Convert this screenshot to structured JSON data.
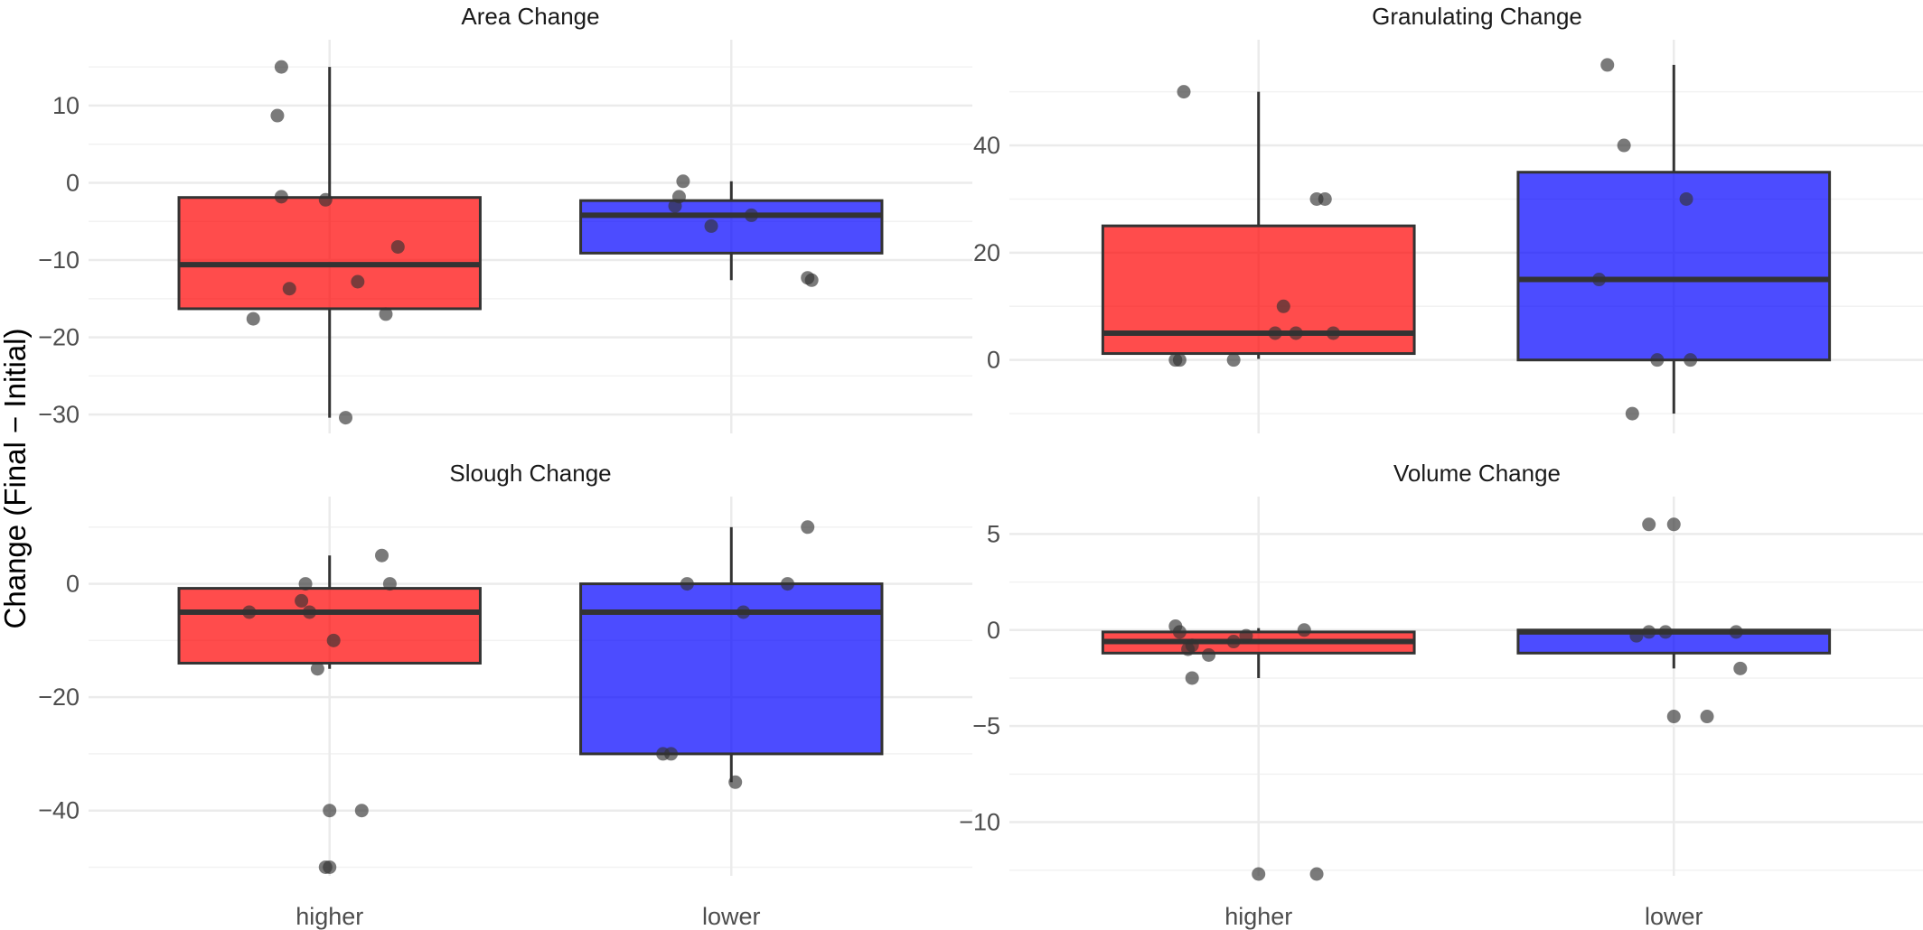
{
  "chart_data": {
    "type": "box",
    "ylabel": "Change (Final − Initial)",
    "colors": {
      "higher": "#FF0000",
      "lower": "#0000FF",
      "points": "#333333",
      "grid": "#ebebeb"
    },
    "panels": [
      {
        "title": "Area Change",
        "categories": [
          "higher",
          "lower"
        ],
        "ylim": [
          -31.5,
          16.3
        ],
        "yticks": [
          -30,
          -20,
          -10,
          0,
          10
        ],
        "ytick_labels": [
          "−30",
          "−20",
          "−10",
          "0",
          "10"
        ],
        "boxes": [
          {
            "category": "higher",
            "whisker_low": -30.4,
            "q1": -16.3,
            "median": -10.6,
            "q3": -1.9,
            "whisker_high": 15.0
          },
          {
            "category": "lower",
            "whisker_low": -12.6,
            "q1": -9.1,
            "median": -4.2,
            "q3": -2.3,
            "whisker_high": 0.2
          }
        ],
        "points": [
          {
            "category": "higher",
            "jitter": -0.12,
            "y": 15.0
          },
          {
            "category": "higher",
            "jitter": -0.13,
            "y": 8.7
          },
          {
            "category": "higher",
            "jitter": -0.12,
            "y": -1.8
          },
          {
            "category": "higher",
            "jitter": -0.01,
            "y": -2.2
          },
          {
            "category": "higher",
            "jitter": 0.17,
            "y": -8.3
          },
          {
            "category": "higher",
            "jitter": 0.07,
            "y": -12.8
          },
          {
            "category": "higher",
            "jitter": -0.1,
            "y": -13.7
          },
          {
            "category": "higher",
            "jitter": -0.19,
            "y": -17.6
          },
          {
            "category": "higher",
            "jitter": 0.14,
            "y": -17.0
          },
          {
            "category": "higher",
            "jitter": 0.04,
            "y": -30.4
          },
          {
            "category": "lower",
            "jitter": -0.12,
            "y": 0.2
          },
          {
            "category": "lower",
            "jitter": -0.13,
            "y": -1.8
          },
          {
            "category": "lower",
            "jitter": -0.14,
            "y": -3.0
          },
          {
            "category": "lower",
            "jitter": 0.05,
            "y": -4.2
          },
          {
            "category": "lower",
            "jitter": -0.05,
            "y": -5.6
          },
          {
            "category": "lower",
            "jitter": 0.19,
            "y": -12.3
          },
          {
            "category": "lower",
            "jitter": 0.2,
            "y": -12.6
          }
        ]
      },
      {
        "title": "Granulating Change",
        "categories": [
          "higher",
          "lower"
        ],
        "ylim": [
          -11.5,
          56.5
        ],
        "yticks": [
          0,
          20,
          40
        ],
        "ytick_labels": [
          "0",
          "20",
          "40"
        ],
        "boxes": [
          {
            "category": "higher",
            "whisker_low": 0.2,
            "q1": 1.2,
            "median": 5.0,
            "q3": 25.0,
            "whisker_high": 50.0
          },
          {
            "category": "lower",
            "whisker_low": -10.0,
            "q1": 0.0,
            "median": 15.0,
            "q3": 35.0,
            "whisker_high": 55.0
          }
        ],
        "points": [
          {
            "category": "higher",
            "jitter": -0.18,
            "y": 50.0
          },
          {
            "category": "higher",
            "jitter": 0.14,
            "y": 30.0
          },
          {
            "category": "higher",
            "jitter": 0.16,
            "y": 30.0
          },
          {
            "category": "higher",
            "jitter": 0.06,
            "y": 10.0
          },
          {
            "category": "higher",
            "jitter": 0.04,
            "y": 5.0
          },
          {
            "category": "higher",
            "jitter": 0.09,
            "y": 5.0
          },
          {
            "category": "higher",
            "jitter": 0.18,
            "y": 5.0
          },
          {
            "category": "higher",
            "jitter": -0.2,
            "y": 0.0
          },
          {
            "category": "higher",
            "jitter": -0.19,
            "y": 0.0
          },
          {
            "category": "higher",
            "jitter": -0.06,
            "y": 0.0
          },
          {
            "category": "lower",
            "jitter": -0.16,
            "y": 55.0
          },
          {
            "category": "lower",
            "jitter": -0.12,
            "y": 40.0
          },
          {
            "category": "lower",
            "jitter": 0.03,
            "y": 30.0
          },
          {
            "category": "lower",
            "jitter": -0.18,
            "y": 15.0
          },
          {
            "category": "lower",
            "jitter": -0.04,
            "y": 0.0
          },
          {
            "category": "lower",
            "jitter": 0.04,
            "y": 0.0
          },
          {
            "category": "lower",
            "jitter": -0.1,
            "y": -10.0
          }
        ]
      },
      {
        "title": "Slough Change",
        "categories": [
          "higher",
          "lower"
        ],
        "ylim": [
          -51.2,
          12.2
        ],
        "yticks": [
          -40,
          -20,
          0
        ],
        "ytick_labels": [
          "−40",
          "−20",
          "0"
        ],
        "boxes": [
          {
            "category": "higher",
            "whisker_low": -15.0,
            "q1": -14.0,
            "median": -5.0,
            "q3": -0.8,
            "whisker_high": 5.0
          },
          {
            "category": "lower",
            "whisker_low": -35.0,
            "q1": -30.0,
            "median": -5.0,
            "q3": 0.0,
            "whisker_high": 10.0
          }
        ],
        "points": [
          {
            "category": "higher",
            "jitter": 0.13,
            "y": 5.0
          },
          {
            "category": "higher",
            "jitter": -0.06,
            "y": 0.0
          },
          {
            "category": "higher",
            "jitter": 0.15,
            "y": 0.0
          },
          {
            "category": "higher",
            "jitter": -0.07,
            "y": -3.0
          },
          {
            "category": "higher",
            "jitter": -0.2,
            "y": -5.0
          },
          {
            "category": "higher",
            "jitter": -0.05,
            "y": -5.0
          },
          {
            "category": "higher",
            "jitter": 0.01,
            "y": -10.0
          },
          {
            "category": "higher",
            "jitter": -0.03,
            "y": -15.0
          },
          {
            "category": "higher",
            "jitter": 0.0,
            "y": -40.0
          },
          {
            "category": "higher",
            "jitter": 0.08,
            "y": -40.0
          },
          {
            "category": "higher",
            "jitter": -0.01,
            "y": -50.0
          },
          {
            "category": "higher",
            "jitter": 0.0,
            "y": -50.0
          },
          {
            "category": "lower",
            "jitter": 0.19,
            "y": 10.0
          },
          {
            "category": "lower",
            "jitter": -0.11,
            "y": 0.0
          },
          {
            "category": "lower",
            "jitter": 0.14,
            "y": 0.0
          },
          {
            "category": "lower",
            "jitter": 0.03,
            "y": -5.0
          },
          {
            "category": "lower",
            "jitter": -0.17,
            "y": -30.0
          },
          {
            "category": "lower",
            "jitter": -0.15,
            "y": -30.0
          },
          {
            "category": "lower",
            "jitter": 0.01,
            "y": -35.0
          }
        ]
      },
      {
        "title": "Volume Change",
        "categories": [
          "higher",
          "lower"
        ],
        "ylim": [
          -12.7,
          6.1
        ],
        "yticks": [
          -10,
          -5,
          0,
          5
        ],
        "ytick_labels": [
          "−10",
          "−5",
          "0",
          "5"
        ],
        "boxes": [
          {
            "category": "higher",
            "whisker_low": -2.5,
            "q1": -1.2,
            "median": -0.6,
            "q3": -0.1,
            "whisker_high": 0.1
          },
          {
            "category": "lower",
            "whisker_low": -2.0,
            "q1": -1.2,
            "median": -0.1,
            "q3": 0.0,
            "whisker_high": 0.0
          }
        ],
        "points": [
          {
            "category": "higher",
            "jitter": -0.2,
            "y": 0.2
          },
          {
            "category": "higher",
            "jitter": 0.11,
            "y": 0.0
          },
          {
            "category": "higher",
            "jitter": -0.19,
            "y": -0.1
          },
          {
            "category": "higher",
            "jitter": -0.03,
            "y": -0.3
          },
          {
            "category": "higher",
            "jitter": -0.06,
            "y": -0.6
          },
          {
            "category": "higher",
            "jitter": -0.16,
            "y": -0.8
          },
          {
            "category": "higher",
            "jitter": -0.17,
            "y": -1.0
          },
          {
            "category": "higher",
            "jitter": -0.12,
            "y": -1.3
          },
          {
            "category": "higher",
            "jitter": -0.16,
            "y": -2.5
          },
          {
            "category": "higher",
            "jitter": 0.0,
            "y": -12.7
          },
          {
            "category": "higher",
            "jitter": 0.14,
            "y": -12.7
          },
          {
            "category": "lower",
            "jitter": -0.06,
            "y": 5.5
          },
          {
            "category": "lower",
            "jitter": 0.0,
            "y": 5.5
          },
          {
            "category": "lower",
            "jitter": -0.09,
            "y": -0.3
          },
          {
            "category": "lower",
            "jitter": -0.06,
            "y": -0.1
          },
          {
            "category": "lower",
            "jitter": -0.02,
            "y": -0.1
          },
          {
            "category": "lower",
            "jitter": 0.15,
            "y": -0.1
          },
          {
            "category": "lower",
            "jitter": 0.16,
            "y": -2.0
          },
          {
            "category": "lower",
            "jitter": 0.0,
            "y": -4.5
          },
          {
            "category": "lower",
            "jitter": 0.08,
            "y": -4.5
          }
        ]
      }
    ]
  }
}
